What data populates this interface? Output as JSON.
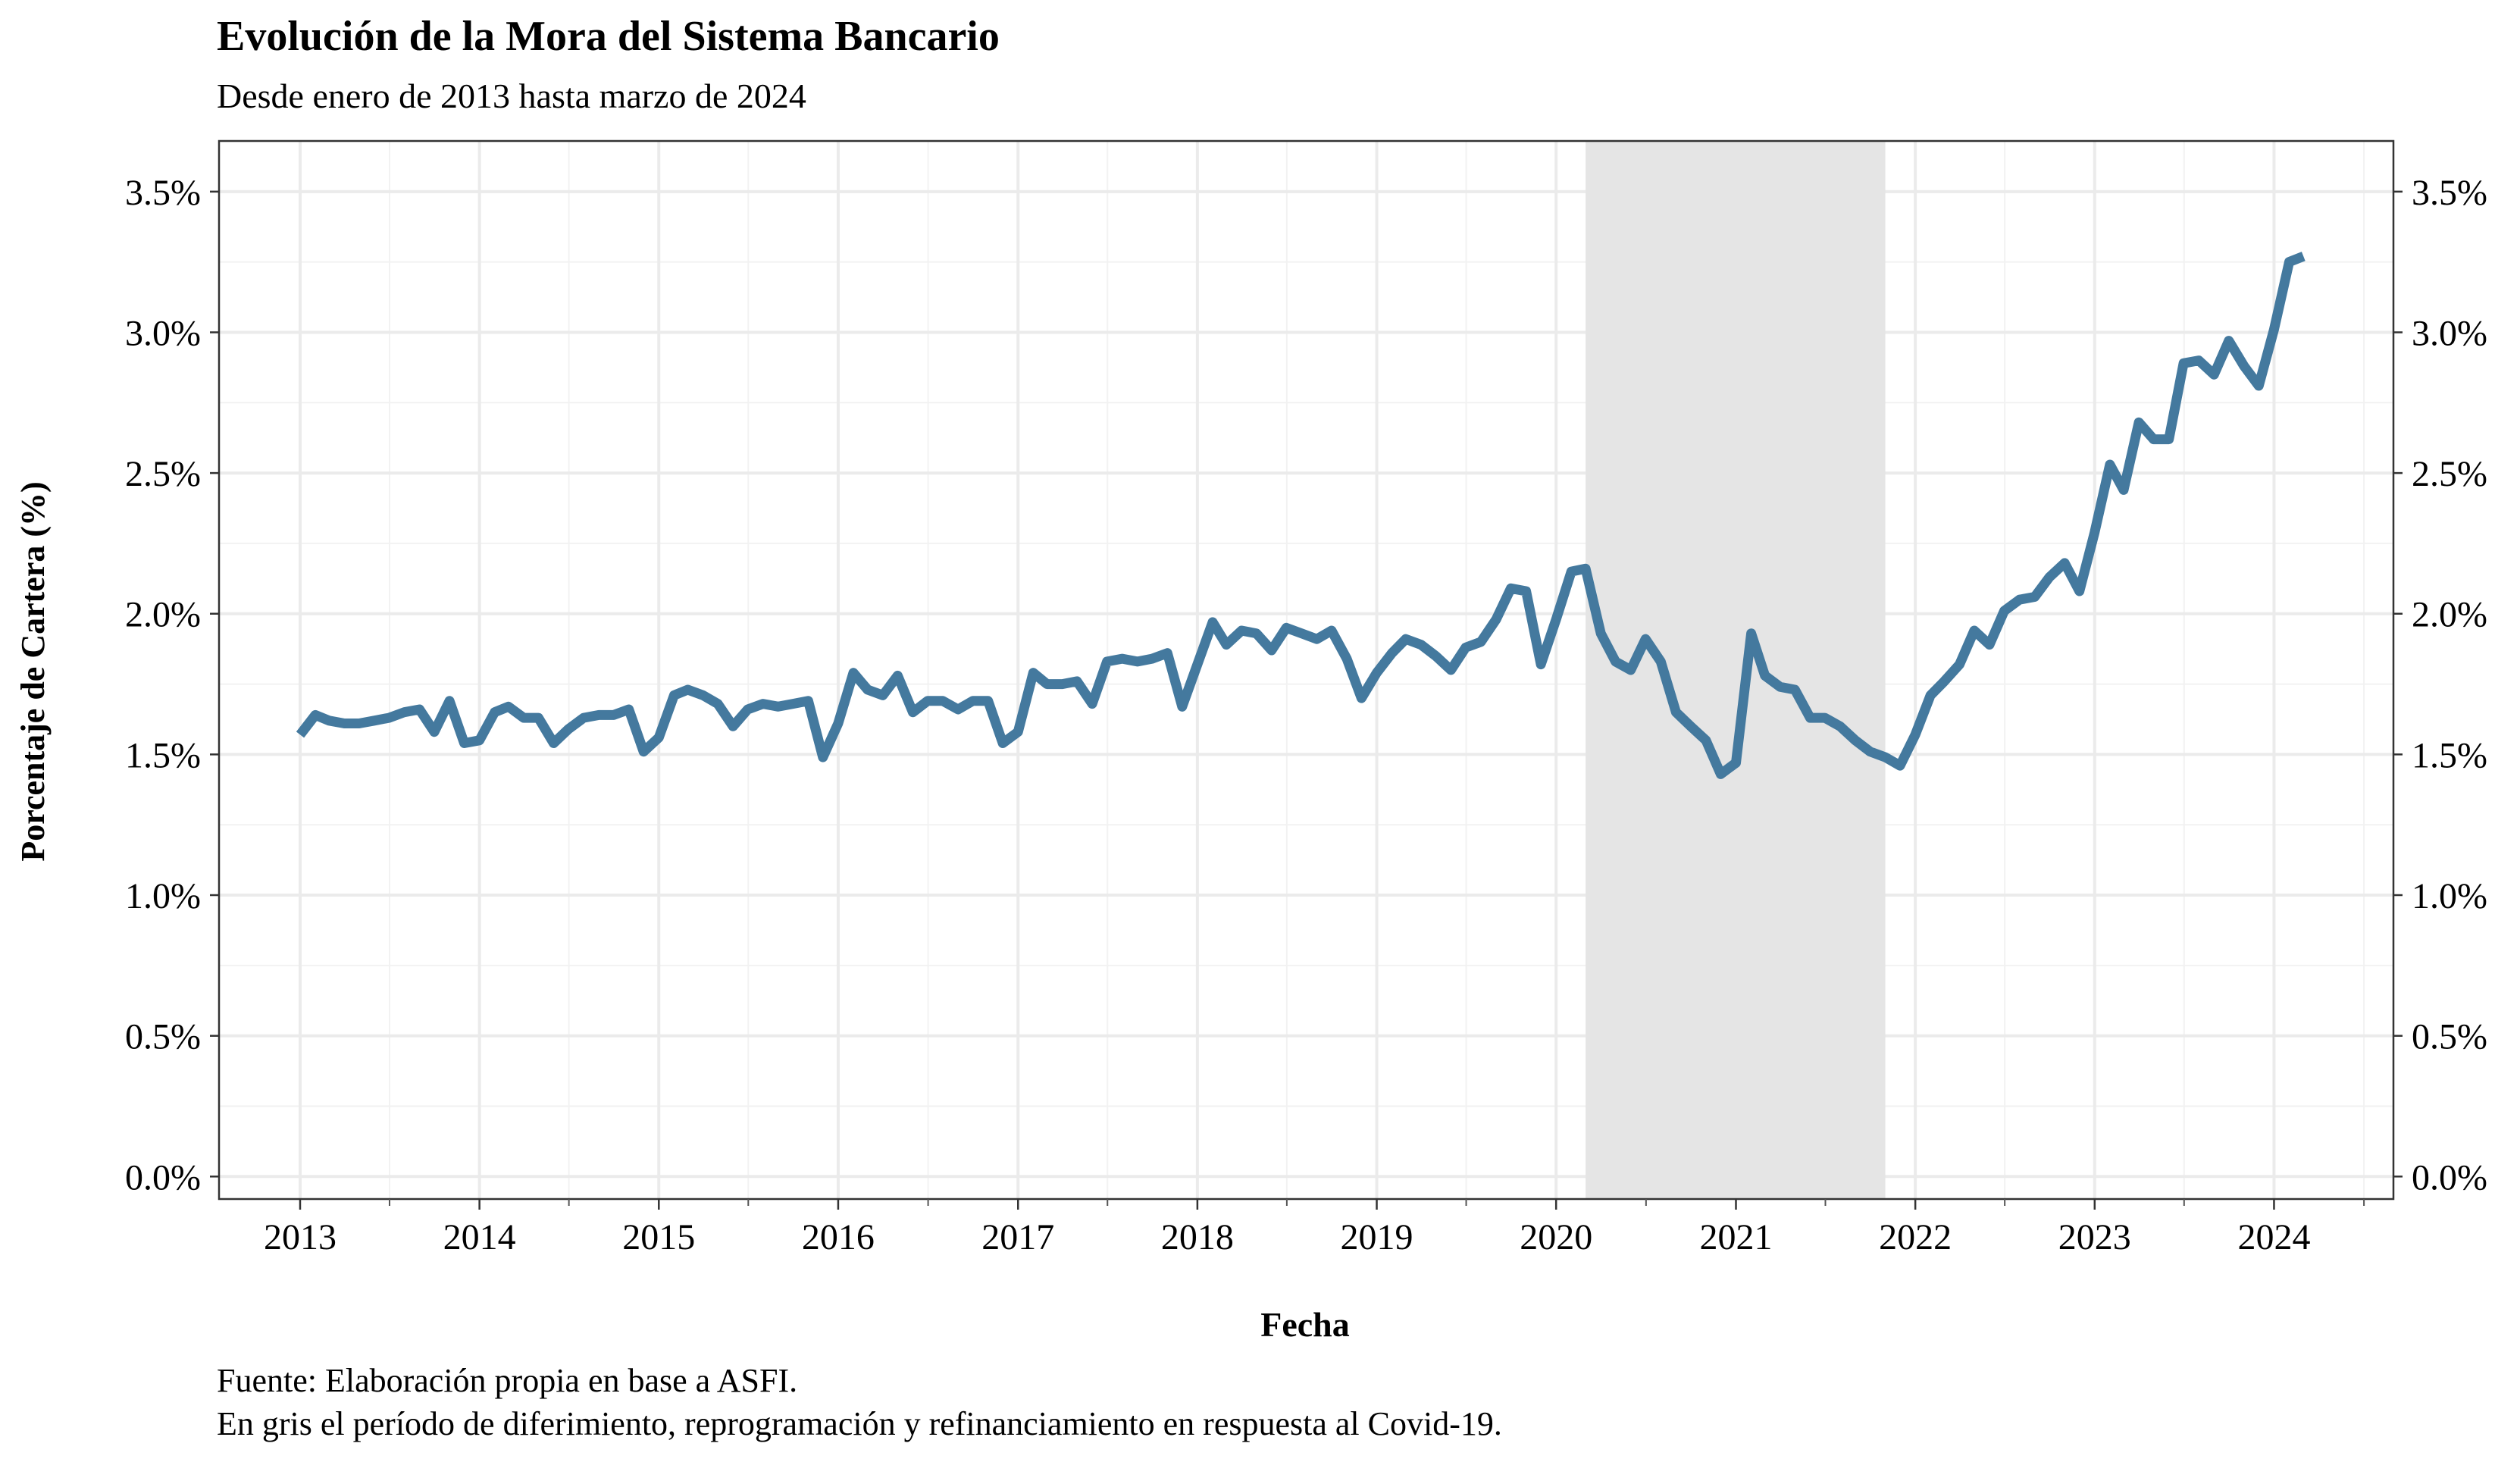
{
  "chart_data": {
    "type": "line",
    "title": "Evolución de la Mora del Sistema Bancario",
    "subtitle": "Desde enero de 2013 hasta marzo de 2024",
    "xlabel": "Fecha",
    "ylabel": "Porcentaje de Cartera (%)",
    "caption_lines": [
      "Fuente: Elaboración propia en base a ASFI.",
      "En gris el período de diferimiento, reprogramación y refinanciamiento en respuesta al Covid-19."
    ],
    "x_ticks": [
      "2013",
      "2014",
      "2015",
      "2016",
      "2017",
      "2018",
      "2019",
      "2020",
      "2021",
      "2022",
      "2023",
      "2024"
    ],
    "y_ticks": [
      "0.0%",
      "0.5%",
      "1.0%",
      "1.5%",
      "2.0%",
      "2.5%",
      "3.0%",
      "3.5%"
    ],
    "xlim": [
      "2012-07-20",
      "2024-08-31"
    ],
    "ylim": [
      -0.0008,
      0.0368
    ],
    "grid": true,
    "secondary_y_axis": true,
    "shaded_period": {
      "start": "2020-03-01",
      "end": "2021-11-01",
      "color": "#e5e5e5"
    },
    "line_color": "#44799e",
    "series": [
      {
        "x": [
          "2013-01",
          "2013-02",
          "2013-03",
          "2013-04",
          "2013-05",
          "2013-06",
          "2013-07",
          "2013-08",
          "2013-09",
          "2013-10",
          "2013-11",
          "2013-12",
          "2014-01",
          "2014-02",
          "2014-03",
          "2014-04",
          "2014-05",
          "2014-06",
          "2014-07",
          "2014-08",
          "2014-09",
          "2014-10",
          "2014-11",
          "2014-12",
          "2015-01",
          "2015-02",
          "2015-03",
          "2015-04",
          "2015-05",
          "2015-06",
          "2015-07",
          "2015-08",
          "2015-09",
          "2015-10",
          "2015-11",
          "2015-12",
          "2016-01",
          "2016-02",
          "2016-03",
          "2016-04",
          "2016-05",
          "2016-06",
          "2016-07",
          "2016-08",
          "2016-09",
          "2016-10",
          "2016-11",
          "2016-12",
          "2017-01",
          "2017-02",
          "2017-03",
          "2017-04",
          "2017-05",
          "2017-06",
          "2017-07",
          "2017-08",
          "2017-09",
          "2017-10",
          "2017-11",
          "2017-12",
          "2018-01",
          "2018-02",
          "2018-03",
          "2018-04",
          "2018-05",
          "2018-06",
          "2018-07",
          "2018-08",
          "2018-09",
          "2018-10",
          "2018-11",
          "2018-12",
          "2019-01",
          "2019-02",
          "2019-03",
          "2019-04",
          "2019-05",
          "2019-06",
          "2019-07",
          "2019-08",
          "2019-09",
          "2019-10",
          "2019-11",
          "2019-12",
          "2020-01",
          "2020-02",
          "2020-03",
          "2020-04",
          "2020-05",
          "2020-06",
          "2020-07",
          "2020-08",
          "2020-09",
          "2020-10",
          "2020-11",
          "2020-12",
          "2021-01",
          "2021-02",
          "2021-03",
          "2021-04",
          "2021-05",
          "2021-06",
          "2021-07",
          "2021-08",
          "2021-09",
          "2021-10",
          "2021-11",
          "2021-12",
          "2022-01",
          "2022-02",
          "2022-03",
          "2022-04",
          "2022-05",
          "2022-06",
          "2022-07",
          "2022-08",
          "2022-09",
          "2022-10",
          "2022-11",
          "2022-12",
          "2023-01",
          "2023-02",
          "2023-03",
          "2023-04",
          "2023-05",
          "2023-06",
          "2023-07",
          "2023-08",
          "2023-09",
          "2023-10",
          "2023-11",
          "2023-12",
          "2024-01",
          "2024-02",
          "2024-03"
        ],
        "values": [
          0.0157,
          0.0164,
          0.0162,
          0.0161,
          0.0161,
          0.0162,
          0.0163,
          0.0165,
          0.0166,
          0.0158,
          0.0169,
          0.0154,
          0.0155,
          0.0165,
          0.0167,
          0.0163,
          0.0163,
          0.0154,
          0.0159,
          0.0163,
          0.0164,
          0.0164,
          0.0166,
          0.0151,
          0.0156,
          0.0171,
          0.0173,
          0.0171,
          0.0168,
          0.016,
          0.0166,
          0.0168,
          0.0167,
          0.0168,
          0.0169,
          0.0149,
          0.0161,
          0.0179,
          0.0173,
          0.0171,
          0.0178,
          0.0165,
          0.0169,
          0.0169,
          0.0166,
          0.0169,
          0.0169,
          0.0154,
          0.0158,
          0.0179,
          0.0175,
          0.0175,
          0.0176,
          0.0168,
          0.0183,
          0.0184,
          0.0183,
          0.0184,
          0.0186,
          0.0167,
          0.0182,
          0.0197,
          0.0189,
          0.0194,
          0.0193,
          0.0187,
          0.0195,
          0.0193,
          0.0191,
          0.0194,
          0.0184,
          0.017,
          0.0179,
          0.0186,
          0.0191,
          0.0189,
          0.0185,
          0.018,
          0.0188,
          0.019,
          0.0198,
          0.0209,
          0.0208,
          0.0182,
          0.0198,
          0.0215,
          0.0216,
          0.0193,
          0.0183,
          0.018,
          0.0191,
          0.0183,
          0.0165,
          0.016,
          0.0155,
          0.0143,
          0.0147,
          0.0193,
          0.0178,
          0.0174,
          0.0173,
          0.0163,
          0.0163,
          0.016,
          0.0155,
          0.0151,
          0.0149,
          0.0146,
          0.0157,
          0.0171,
          0.0176,
          0.0182,
          0.0194,
          0.0189,
          0.0201,
          0.0205,
          0.0206,
          0.0213,
          0.0218,
          0.0208,
          0.0229,
          0.0253,
          0.0244,
          0.0268,
          0.0262,
          0.0262,
          0.0289,
          0.029,
          0.0285,
          0.0297,
          0.0288,
          0.0281,
          0.0301,
          0.0325,
          0.0327
        ]
      }
    ]
  }
}
